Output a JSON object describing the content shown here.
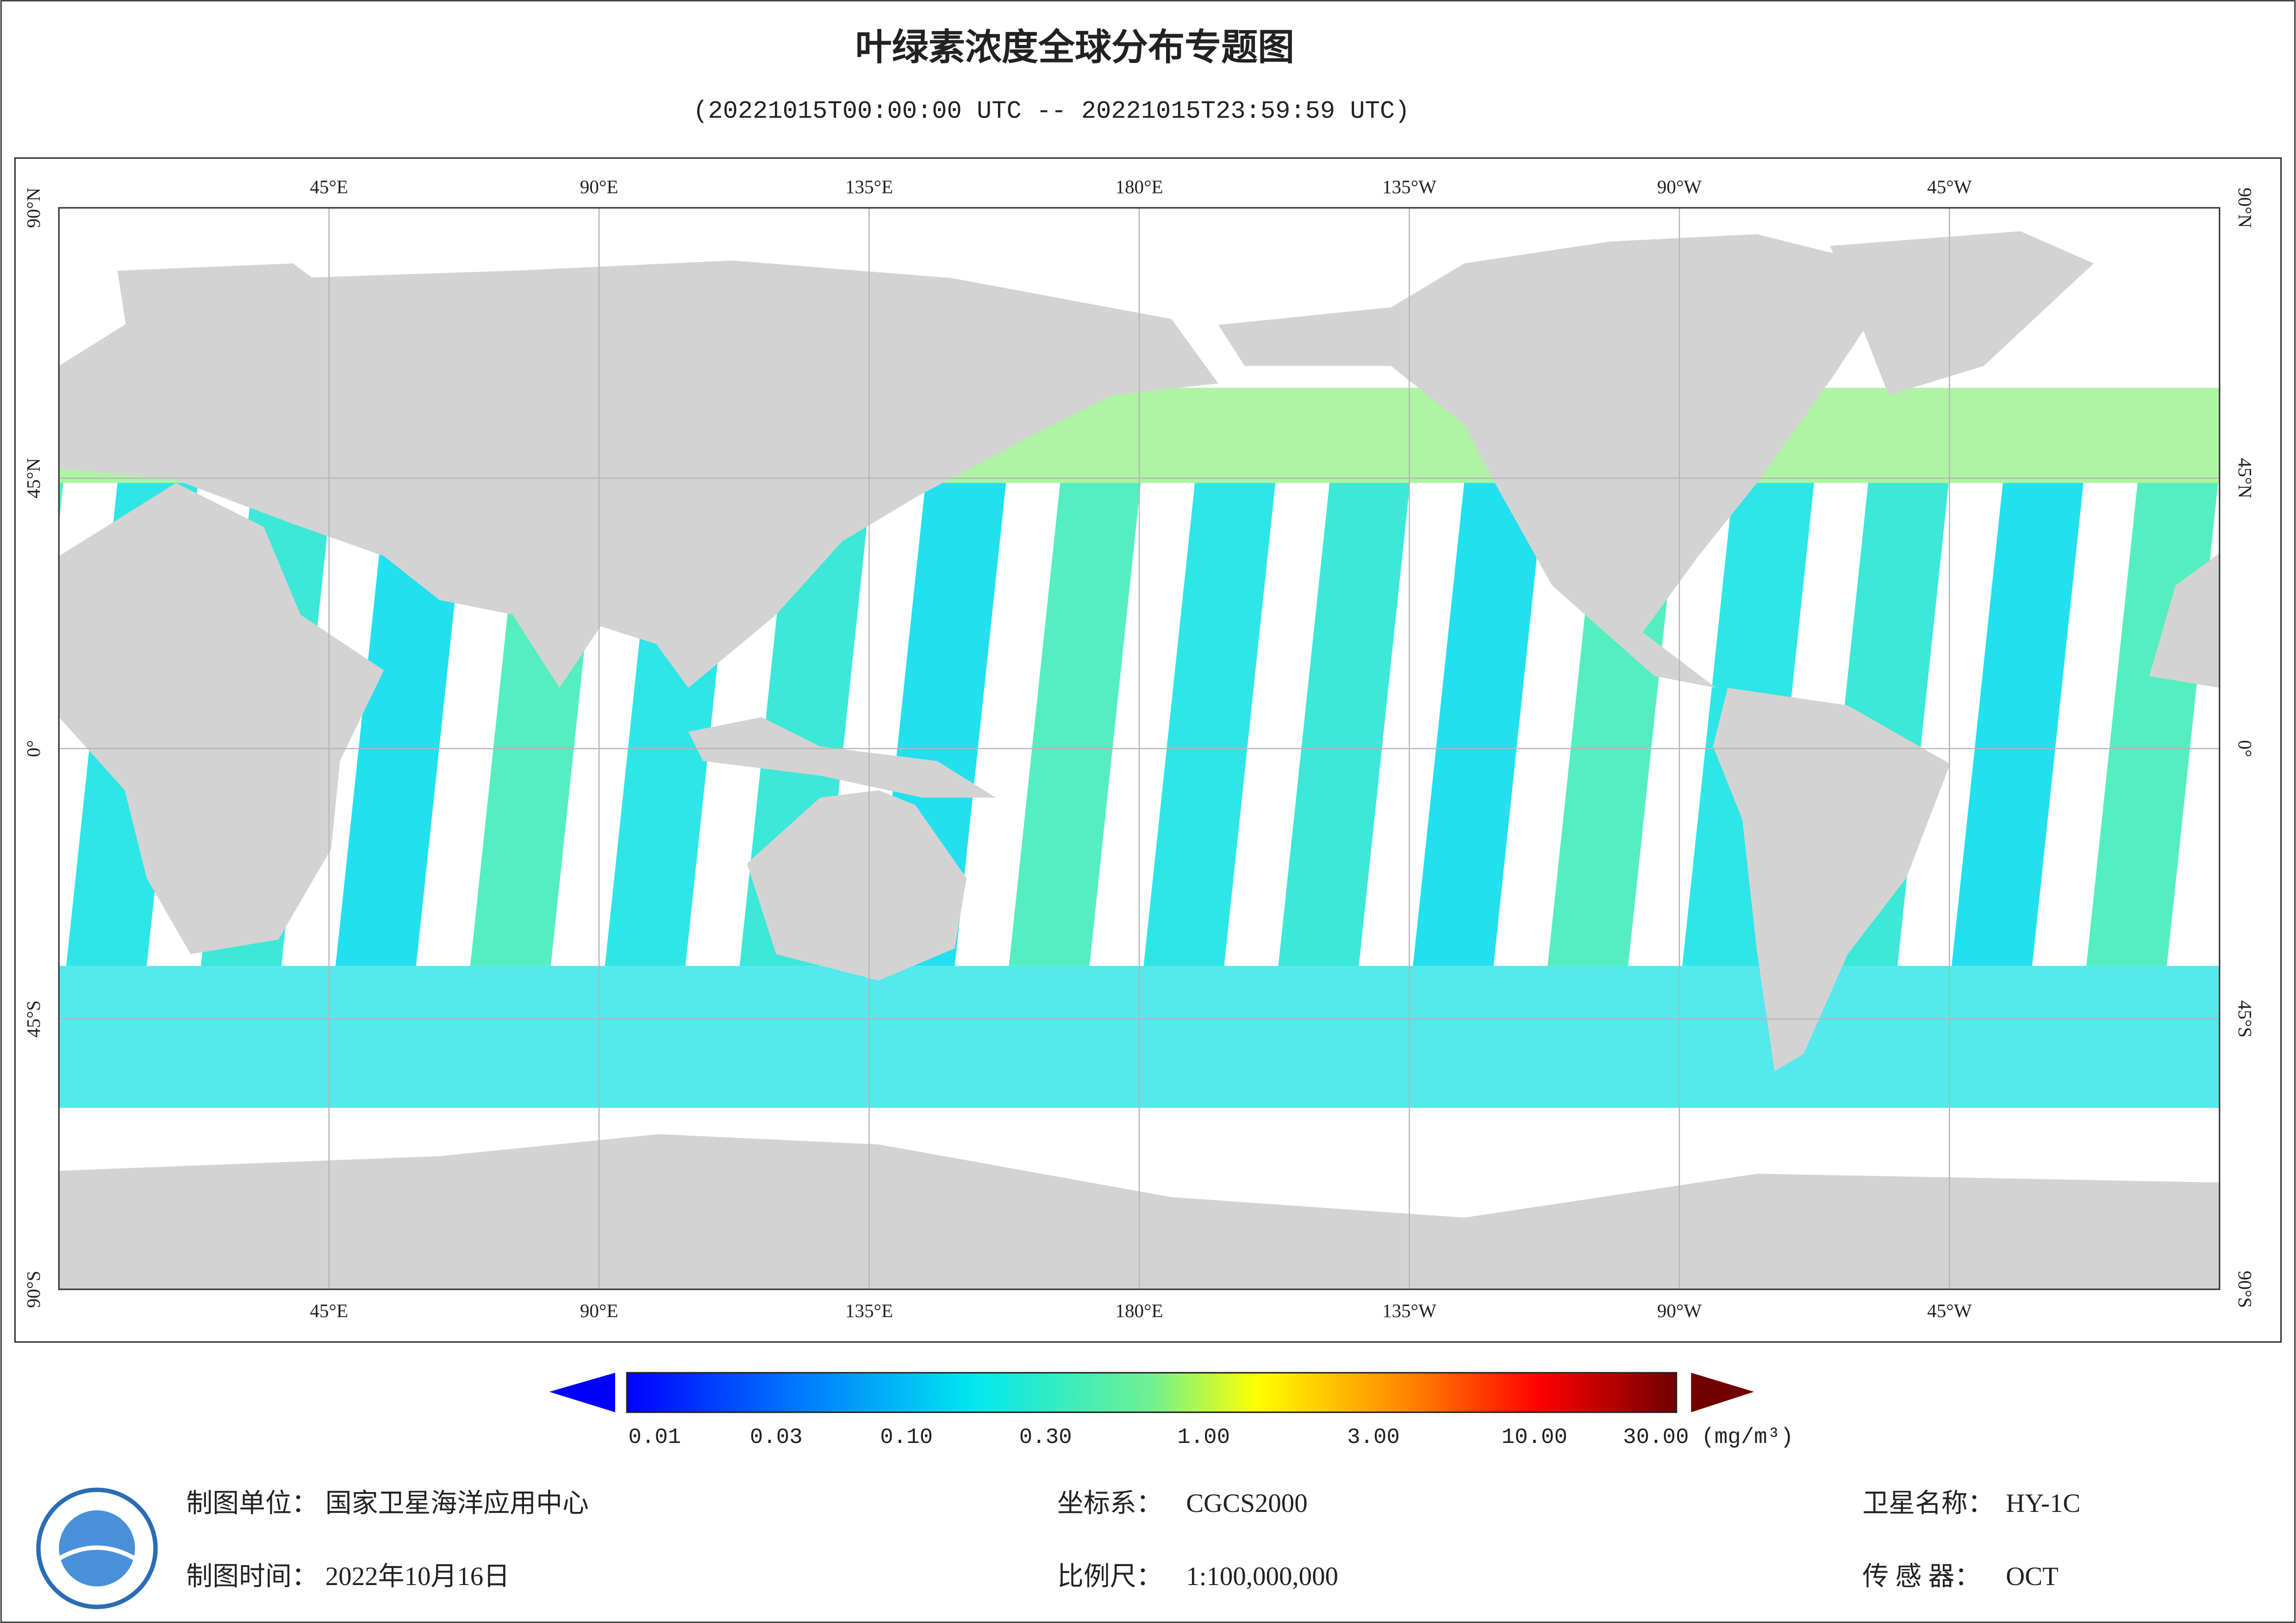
{
  "title": "叶绿素浓度全球分布专题图",
  "subtitle": "(20221015T00:00:00 UTC -- 20221015T23:59:59 UTC)",
  "map": {
    "lon_labels": [
      "45°E",
      "90°E",
      "135°E",
      "180°E",
      "135°W",
      "90°W",
      "45°W"
    ],
    "lat_labels": [
      "90°N",
      "45°N",
      "0°",
      "45°S",
      "90°S"
    ]
  },
  "legend": {
    "ticks": [
      "0.01",
      "0.03",
      "0.10",
      "0.30",
      "1.00",
      "3.00",
      "10.00",
      "30.00"
    ],
    "unit": "(mg/m³)"
  },
  "footer": {
    "unit_label": "制图单位：",
    "unit": "国家卫星海洋应用中心",
    "time_label": "制图时间：",
    "time": "2022年10月16日",
    "crs_label": "坐标系：",
    "crs": "CGCS2000",
    "scale_label": "比例尺：",
    "scale": "1:100,000,000",
    "sat_label": "卫星名称：",
    "sat": "HY-1C",
    "sensor_label": "传 感 器：",
    "sensor": "OCT"
  }
}
